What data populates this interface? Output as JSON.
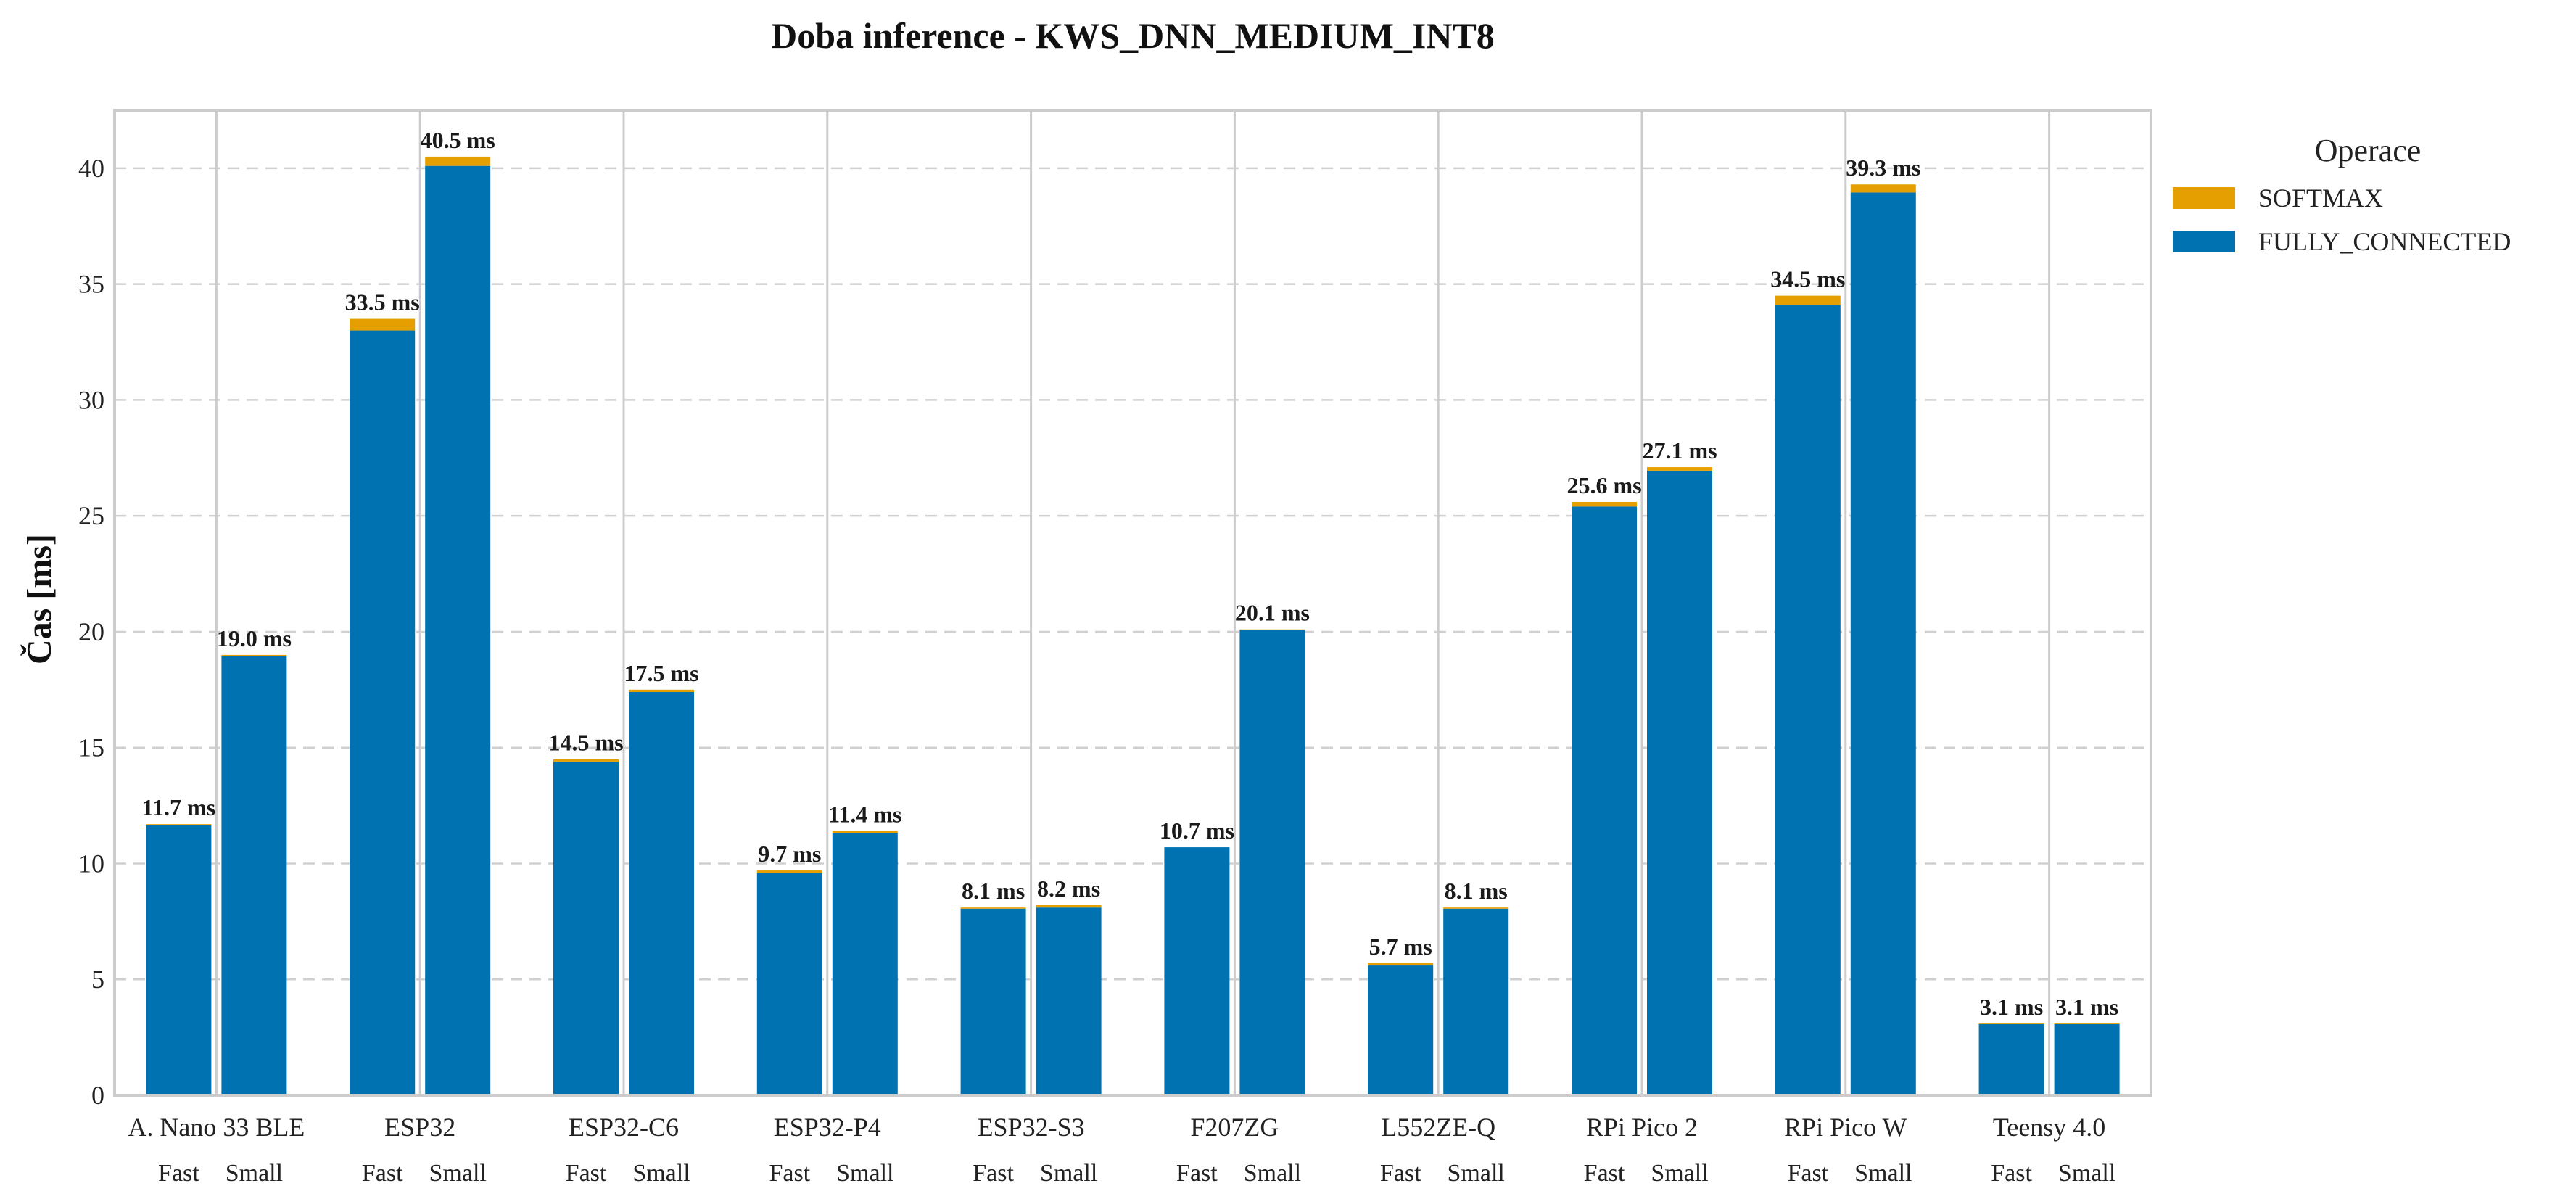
{
  "chart_data": {
    "type": "bar",
    "stacked": true,
    "title": "Doba inference - KWS_DNN_MEDIUM_INT8",
    "ylabel": "Čas [ms]",
    "xlabel": "",
    "ylim": [
      0,
      42.5
    ],
    "yticks": [
      0,
      5,
      10,
      15,
      20,
      25,
      30,
      35,
      40
    ],
    "grid": "y dashed",
    "legend": {
      "title": "Operace",
      "placement": "outside-top-right"
    },
    "categories": [
      "A. Nano 33 BLE",
      "ESP32",
      "ESP32-C6",
      "ESP32-P4",
      "ESP32-S3",
      "F207ZG",
      "L552ZE-Q",
      "RPi Pico 2",
      "RPi Pico W",
      "Teensy 4.0"
    ],
    "subcategories": [
      "Fast",
      "Small"
    ],
    "series": [
      {
        "name": "FULLY_CONNECTED",
        "color": "#0072B2",
        "values": [
          [
            11.65,
            18.95
          ],
          [
            33.0,
            40.1
          ],
          [
            14.4,
            17.4
          ],
          [
            9.6,
            11.3
          ],
          [
            8.05,
            8.1
          ],
          [
            10.7,
            20.08
          ],
          [
            5.6,
            8.05
          ],
          [
            25.4,
            26.95
          ],
          [
            34.1,
            38.95
          ],
          [
            3.07,
            3.07
          ]
        ]
      },
      {
        "name": "SOFTMAX",
        "color": "#E69F00",
        "values": [
          [
            0.05,
            0.05
          ],
          [
            0.5,
            0.4
          ],
          [
            0.1,
            0.1
          ],
          [
            0.1,
            0.1
          ],
          [
            0.05,
            0.1
          ],
          [
            0.0,
            0.02
          ],
          [
            0.1,
            0.05
          ],
          [
            0.2,
            0.15
          ],
          [
            0.4,
            0.35
          ],
          [
            0.03,
            0.03
          ]
        ]
      }
    ],
    "totals_labels": [
      [
        "11.7 ms",
        "19.0 ms"
      ],
      [
        "33.5 ms",
        "40.5 ms"
      ],
      [
        "14.5 ms",
        "17.5 ms"
      ],
      [
        "9.7 ms",
        "11.4 ms"
      ],
      [
        "8.1 ms",
        "8.2 ms"
      ],
      [
        "10.7 ms",
        "20.1 ms"
      ],
      [
        "5.7 ms",
        "8.1 ms"
      ],
      [
        "25.6 ms",
        "27.1 ms"
      ],
      [
        "34.5 ms",
        "39.3 ms"
      ],
      [
        "3.1 ms",
        "3.1 ms"
      ]
    ],
    "legend_order": [
      "SOFTMAX",
      "FULLY_CONNECTED"
    ]
  }
}
